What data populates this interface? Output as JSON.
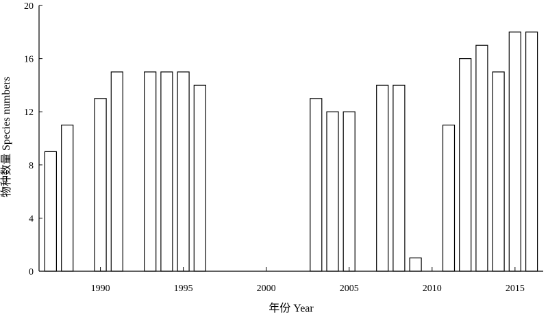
{
  "chart_data": {
    "type": "bar",
    "xlabel": "年份 Year",
    "ylabel": "物种数量 Species numbers",
    "xlim": [
      1986.3,
      2016.7
    ],
    "ylim": [
      0,
      20
    ],
    "x_ticks": [
      1990,
      1995,
      2000,
      2005,
      2010,
      2015
    ],
    "y_ticks": [
      0,
      4,
      8,
      12,
      16,
      20
    ],
    "grid": false,
    "bar_fill": "#ffffff",
    "bar_stroke": "#000000",
    "x": [
      1987,
      1988,
      1990,
      1991,
      1993,
      1994,
      1995,
      1996,
      2003,
      2004,
      2005,
      2007,
      2008,
      2009,
      2011,
      2012,
      2013,
      2014,
      2015,
      2016
    ],
    "values": [
      9,
      11,
      13,
      15,
      15,
      15,
      15,
      14,
      13,
      12,
      12,
      14,
      14,
      1,
      11,
      16,
      17,
      15,
      18,
      18
    ]
  }
}
